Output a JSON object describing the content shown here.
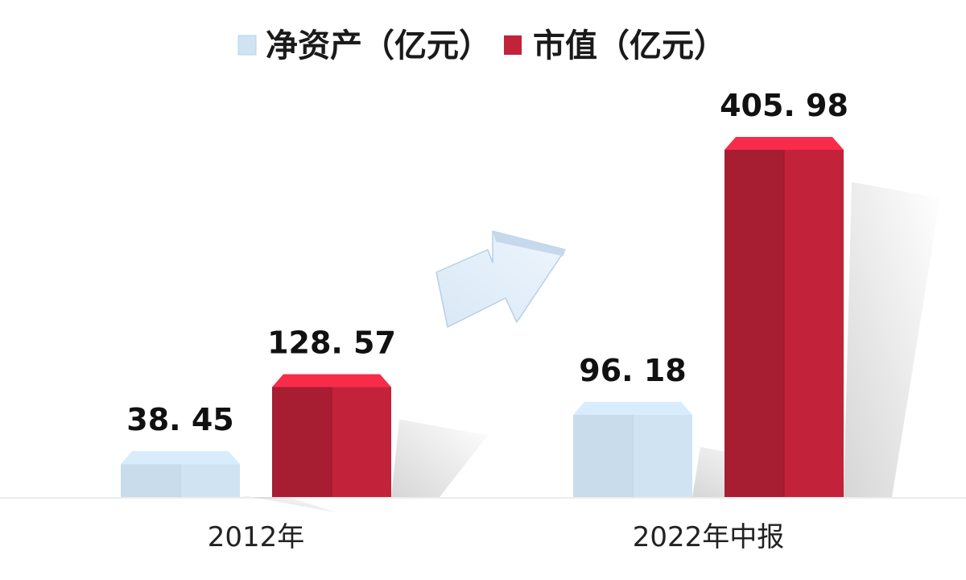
{
  "chart_data": {
    "type": "bar",
    "categories": [
      "2012年",
      "2022年中报"
    ],
    "series": [
      {
        "name": "净资产（亿元）",
        "values": [
          38.45,
          96.18
        ],
        "color": "#cfe3f3"
      },
      {
        "name": "市值（亿元）",
        "values": [
          128.57,
          405.98
        ],
        "color": "#c2223a"
      }
    ],
    "value_labels": [
      [
        "38. 45",
        "96. 18"
      ],
      [
        "128. 57",
        "405. 98"
      ]
    ],
    "ylim": [
      0,
      430
    ],
    "grid": false,
    "legend_position": "top",
    "decorations": [
      "up-right-arrow"
    ]
  }
}
